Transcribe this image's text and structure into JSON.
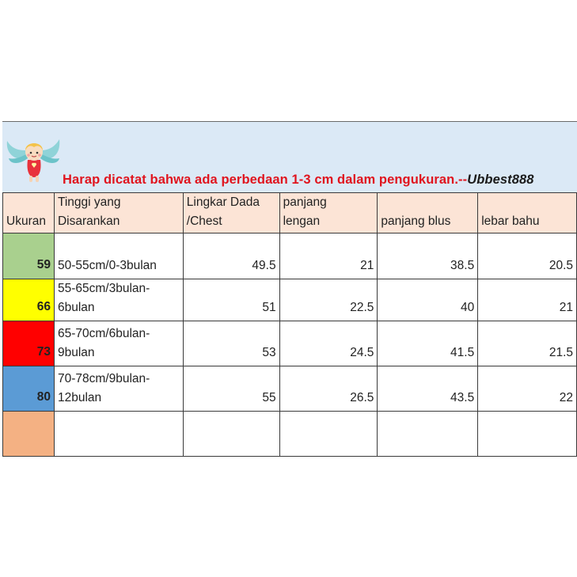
{
  "notice": {
    "text": "Harap dicatat bahwa ada perbedaan 1-3 cm dalam pengukuran.--",
    "brand": "Ubbest888"
  },
  "headers": {
    "size": "Ukuran",
    "height_line1": "Tinggi yang",
    "height_line2": "Disarankan",
    "chest_line1": "Lingkar Dada",
    "chest_line2": "/Chest",
    "sleeve_line1": "panjang",
    "sleeve_line2": "lengan",
    "blouse": "panjang blus",
    "shoulder": "lebar bahu"
  },
  "rows": [
    {
      "size": "59",
      "color": "#a9d08e",
      "height1": "",
      "height2": "50-55cm/0-3bulan",
      "chest": "49.5",
      "sleeve": "21",
      "blouse": "38.5",
      "shoulder": "20.5"
    },
    {
      "size": "66",
      "color": "#ffff00",
      "height1": "55-65cm/3bulan-",
      "height2": "6bulan",
      "chest": "51",
      "sleeve": "22.5",
      "blouse": "40",
      "shoulder": "21"
    },
    {
      "size": "73",
      "color": "#ff0000",
      "height1": "65-70cm/6bulan-",
      "height2": "9bulan",
      "chest": "53",
      "sleeve": "24.5",
      "blouse": "41.5",
      "shoulder": "21.5"
    },
    {
      "size": "80",
      "color": "#5b9bd5",
      "height1": "70-78cm/9bulan-",
      "height2": "12bulan",
      "chest": "55",
      "sleeve": "26.5",
      "blouse": "43.5",
      "shoulder": "22"
    }
  ],
  "empty_row_color": "#f4b183",
  "colors": {
    "banner": "#dbe9f6",
    "header": "#fce4d6",
    "notice": "#e0141e"
  },
  "icons": {
    "logo": "angel-mascot-icon"
  }
}
